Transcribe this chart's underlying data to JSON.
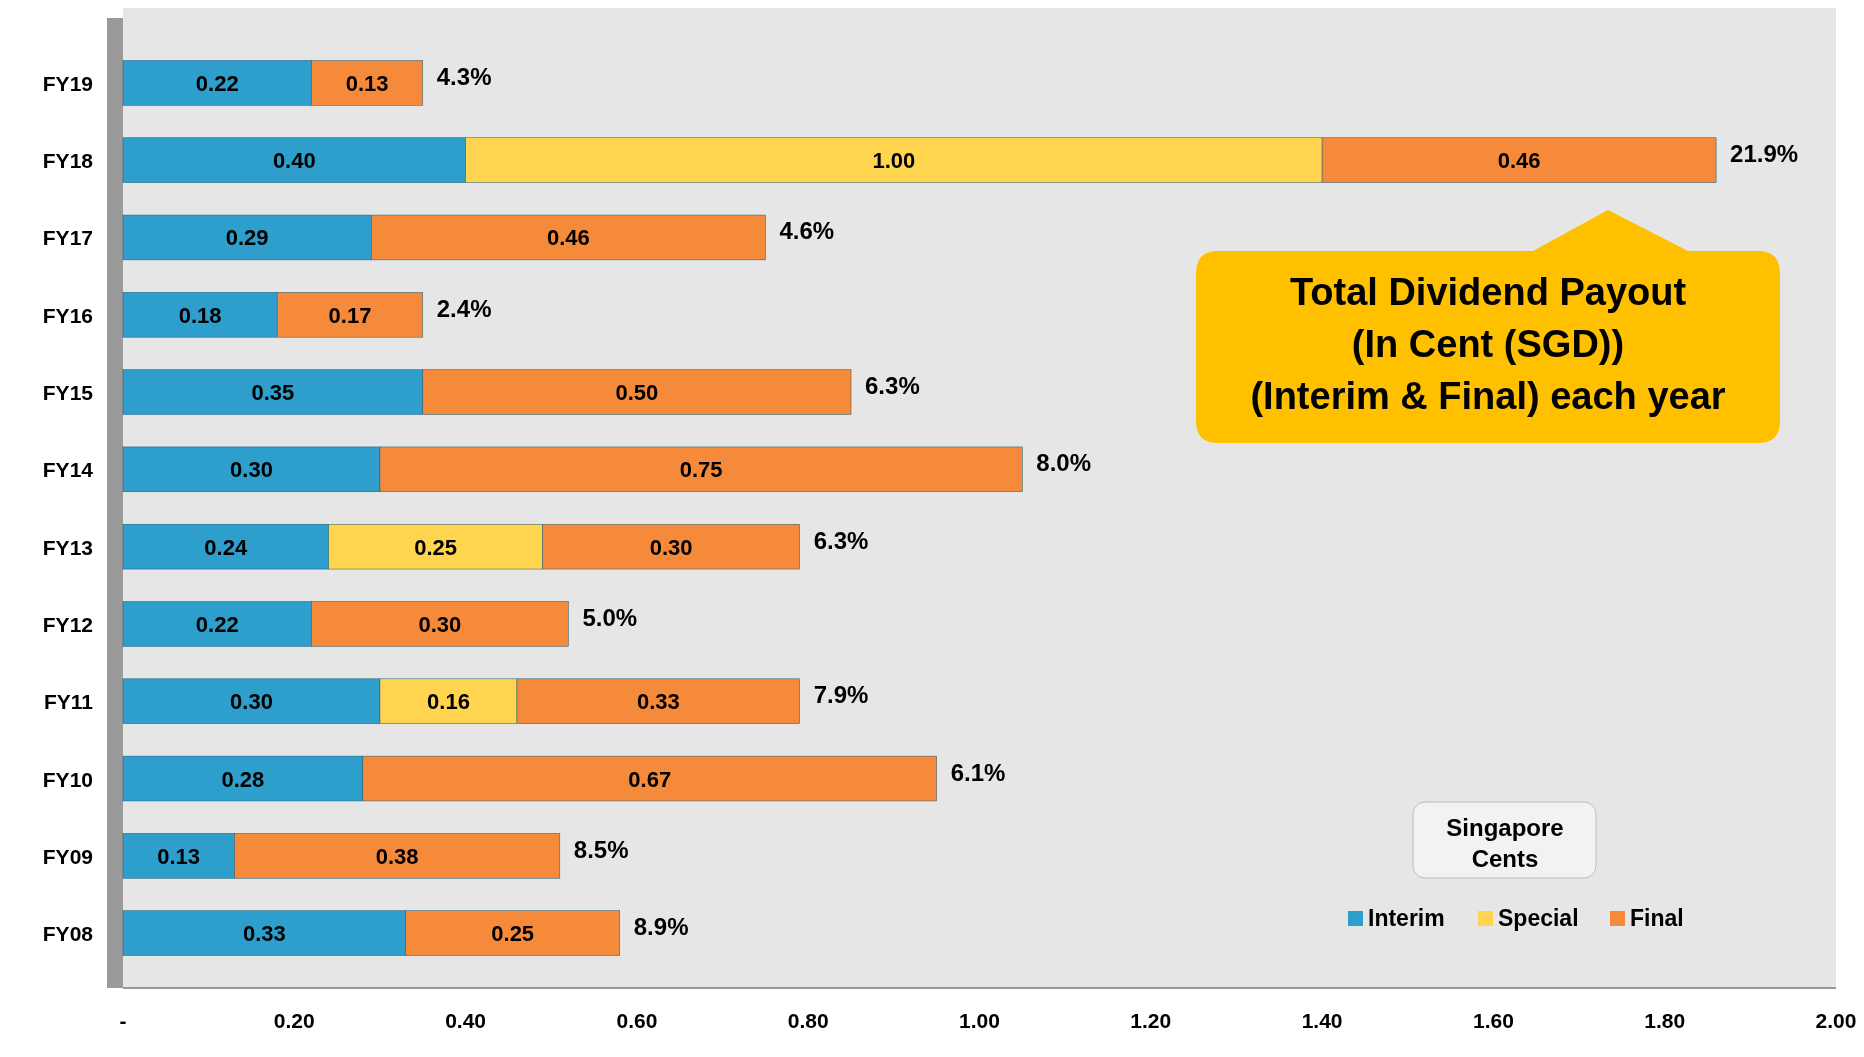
{
  "chart_data": {
    "type": "bar",
    "orientation": "horizontal",
    "stacked": true,
    "categories": [
      "FY19",
      "FY18",
      "FY17",
      "FY16",
      "FY15",
      "FY14",
      "FY13",
      "FY12",
      "FY11",
      "FY10",
      "FY09",
      "FY08"
    ],
    "series": [
      {
        "name": "Interim",
        "color": "#2e9fcc",
        "values": [
          0.22,
          0.4,
          0.29,
          0.18,
          0.35,
          0.3,
          0.24,
          0.22,
          0.3,
          0.28,
          0.13,
          0.33
        ],
        "value_labels": [
          "0.22",
          "0.40",
          "0.29",
          "0.18",
          "0.35",
          "0.30",
          "0.24",
          "0.22",
          "0.30",
          "0.28",
          "0.13",
          "0.33"
        ]
      },
      {
        "name": "Special",
        "color": "#ffd54f",
        "values": [
          null,
          1.0,
          null,
          null,
          null,
          null,
          0.25,
          null,
          0.16,
          null,
          null,
          null
        ],
        "value_labels": [
          null,
          "1.00",
          null,
          null,
          null,
          null,
          "0.25",
          null,
          "0.16",
          null,
          null,
          null
        ]
      },
      {
        "name": "Final",
        "color": "#f58a3a",
        "values": [
          0.13,
          0.46,
          0.46,
          0.17,
          0.5,
          0.75,
          0.3,
          0.3,
          0.33,
          0.67,
          0.38,
          0.25
        ],
        "value_labels": [
          "0.13",
          "0.46",
          "0.46",
          "0.17",
          "0.50",
          "0.75",
          "0.30",
          "0.30",
          "0.33",
          "0.67",
          "0.38",
          "0.25"
        ]
      }
    ],
    "xlim": [
      0,
      2
    ],
    "xticks": [
      {
        "value": 0,
        "label": "-"
      },
      {
        "value": 0.2,
        "label": "0.20"
      },
      {
        "value": 0.4,
        "label": "0.40"
      },
      {
        "value": 0.6,
        "label": "0.60"
      },
      {
        "value": 0.8,
        "label": "0.80"
      },
      {
        "value": 1,
        "label": "1.00"
      },
      {
        "value": 1.2,
        "label": "1.20"
      },
      {
        "value": 1.4,
        "label": "1.40"
      },
      {
        "value": 1.6,
        "label": "1.60"
      },
      {
        "value": 1.8,
        "label": "1.80"
      },
      {
        "value": 2,
        "label": "2.00"
      }
    ],
    "grid": false,
    "legend": "bottom right",
    "annotations": [
      "Total Dividend Payout\n(In Cent (SGD))\n(Interim & Final) each year",
      "Singapore\nCents",
      {
        "text": "4.3%",
        "x": 0.35,
        "y": "FY19"
      },
      {
        "text": "21.9%",
        "x": 1.86,
        "y": "FY18"
      },
      {
        "text": "4.6%",
        "x": 0.75,
        "y": "FY17"
      },
      {
        "text": "2.4%",
        "x": 0.35,
        "y": "FY16"
      },
      {
        "text": "6.3%",
        "x": 0.85,
        "y": "FY15"
      },
      {
        "text": "8.0%",
        "x": 1.05,
        "y": "FY14"
      },
      {
        "text": "6.3%",
        "x": 0.79,
        "y": "FY13"
      },
      {
        "text": "5.0%",
        "x": 0.52,
        "y": "FY12"
      },
      {
        "text": "7.9%",
        "x": 0.79,
        "y": "FY11"
      },
      {
        "text": "6.1%",
        "x": 0.95,
        "y": "FY10"
      },
      {
        "text": "8.5%",
        "x": 0.51,
        "y": "FY09"
      },
      {
        "text": "8.9%",
        "x": 0.58,
        "y": "FY08"
      }
    ]
  }
}
